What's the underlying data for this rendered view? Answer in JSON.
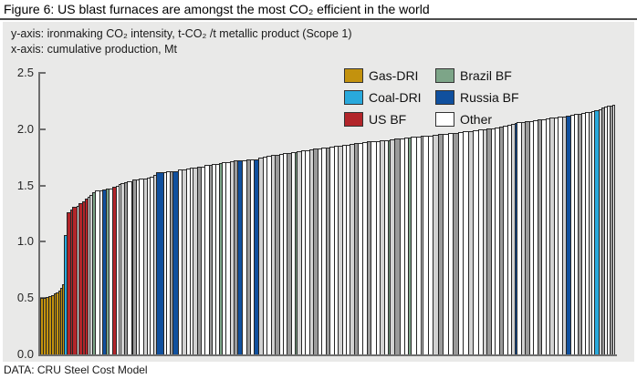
{
  "figure": {
    "title": "Figure 6: US blast furnaces are amongst the most CO₂ efficient in the world",
    "axis_note_y": "y-axis: ironmaking CO₂ intensity, t-CO₂ /t metallic product (Scope 1)",
    "axis_note_x": "x-axis: cumulative production, Mt",
    "source": "DATA: CRU Steel Cost Model"
  },
  "colors": {
    "panel_bg": "#E9E9E8",
    "axis": "#6e6e6e",
    "bar_border": "#262626",
    "title_rule": "#4d4d4d"
  },
  "chart_data": {
    "type": "bar",
    "subtype": "cost-curve",
    "title": "US blast furnaces are amongst the most CO₂ efficient in the world",
    "xlabel": "cumulative production, Mt",
    "ylabel": "ironmaking CO₂ intensity, t-CO₂ /t metallic product (Scope 1)",
    "ylim": [
      0,
      2.5
    ],
    "yticks": [
      "0.0",
      "0.5",
      "1.0",
      "1.5",
      "2.0",
      "2.5"
    ],
    "xticks": [],
    "grid": false,
    "legend_position": "top-right",
    "legend": [
      {
        "code": "gas",
        "label": "Gas-DRI",
        "color": "#C3920E"
      },
      {
        "code": "coal",
        "label": "Coal-DRI",
        "color": "#29A9DC"
      },
      {
        "code": "us",
        "label": "US BF",
        "color": "#B2252A"
      },
      {
        "code": "brazil",
        "label": "Brazil BF",
        "color": "#7DA588"
      },
      {
        "code": "russia",
        "label": "Russia BF",
        "color": "#10509E"
      },
      {
        "code": "other",
        "label": "Other",
        "color": "#FFFFFF"
      }
    ],
    "bars": [
      [
        "gas",
        0.5,
        3
      ],
      [
        "gas",
        0.505,
        3
      ],
      [
        "gas",
        0.51,
        3
      ],
      [
        "gas",
        0.52,
        3
      ],
      [
        "gas",
        0.53,
        3
      ],
      [
        "gas",
        0.54,
        2.5
      ],
      [
        "gas",
        0.55,
        2.5
      ],
      [
        "gas",
        0.57,
        2
      ],
      [
        "gas",
        0.59,
        2
      ],
      [
        "gas",
        0.62,
        2
      ],
      [
        "coal",
        1.06,
        3.5
      ],
      [
        "us",
        1.26,
        4
      ],
      [
        "us",
        1.29,
        2
      ],
      [
        "us",
        1.31,
        5
      ],
      [
        "other",
        1.32,
        2
      ],
      [
        "us",
        1.34,
        4
      ],
      [
        "us",
        1.36,
        2.5
      ],
      [
        "us",
        1.38,
        3
      ],
      [
        "other",
        1.4,
        2.5
      ],
      [
        "other",
        1.42,
        2.5
      ],
      [
        "brazil",
        1.44,
        3
      ],
      [
        "other",
        1.455,
        5
      ],
      [
        "other",
        1.46,
        3.5
      ],
      [
        "russia",
        1.465,
        4
      ],
      [
        "brazil",
        1.47,
        2.5
      ],
      [
        "other",
        1.475,
        4.5
      ],
      [
        "us",
        1.49,
        3.5
      ],
      [
        "other",
        1.5,
        3
      ],
      [
        "other",
        1.51,
        2
      ],
      [
        "other",
        1.52,
        4
      ],
      [
        "other",
        1.53,
        3
      ],
      [
        "other",
        1.535,
        5
      ],
      [
        "other",
        1.54,
        2
      ],
      [
        "other",
        1.55,
        4
      ],
      [
        "other",
        1.555,
        3
      ],
      [
        "other",
        1.56,
        5
      ],
      [
        "other",
        1.565,
        4
      ],
      [
        "other",
        1.57,
        3
      ],
      [
        "other",
        1.58,
        4
      ],
      [
        "other",
        1.59,
        3
      ],
      [
        "russia",
        1.62,
        8
      ],
      [
        "other",
        1.62,
        3
      ],
      [
        "other",
        1.625,
        4
      ],
      [
        "other",
        1.63,
        3
      ],
      [
        "russia",
        1.63,
        6
      ],
      [
        "other",
        1.64,
        4
      ],
      [
        "other",
        1.645,
        5
      ],
      [
        "other",
        1.65,
        4
      ],
      [
        "other",
        1.655,
        3
      ],
      [
        "other",
        1.66,
        5
      ],
      [
        "other",
        1.665,
        4
      ],
      [
        "other",
        1.67,
        4
      ],
      [
        "other",
        1.68,
        5
      ],
      [
        "other",
        1.685,
        3
      ],
      [
        "other",
        1.69,
        4
      ],
      [
        "other",
        1.695,
        4
      ],
      [
        "brazil",
        1.7,
        3
      ],
      [
        "other",
        1.705,
        4
      ],
      [
        "other",
        1.71,
        5
      ],
      [
        "other",
        1.715,
        4
      ],
      [
        "other",
        1.72,
        4
      ],
      [
        "russia",
        1.72,
        5
      ],
      [
        "other",
        1.725,
        5
      ],
      [
        "other",
        1.73,
        4
      ],
      [
        "other",
        1.735,
        4
      ],
      [
        "russia",
        1.735,
        5
      ],
      [
        "other",
        1.75,
        5
      ],
      [
        "other",
        1.755,
        4
      ],
      [
        "other",
        1.76,
        5
      ],
      [
        "other",
        1.77,
        4
      ],
      [
        "other",
        1.775,
        5
      ],
      [
        "other",
        1.78,
        4
      ],
      [
        "other",
        1.785,
        4
      ],
      [
        "other",
        1.79,
        5
      ],
      [
        "other",
        1.795,
        4
      ],
      [
        "brazil",
        1.8,
        2.5
      ],
      [
        "other",
        1.805,
        5
      ],
      [
        "other",
        1.81,
        4
      ],
      [
        "other",
        1.815,
        5
      ],
      [
        "other",
        1.82,
        4
      ],
      [
        "other",
        1.825,
        5
      ],
      [
        "other",
        1.83,
        4
      ],
      [
        "other",
        1.835,
        5
      ],
      [
        "other",
        1.84,
        4
      ],
      [
        "other",
        1.845,
        5
      ],
      [
        "other",
        1.85,
        4
      ],
      [
        "other",
        1.855,
        5
      ],
      [
        "other",
        1.86,
        4
      ],
      [
        "other",
        1.865,
        4
      ],
      [
        "other",
        1.87,
        5
      ],
      [
        "other",
        1.875,
        4
      ],
      [
        "other",
        1.88,
        5
      ],
      [
        "other",
        1.885,
        5
      ],
      [
        "other",
        1.89,
        4
      ],
      [
        "other",
        1.893,
        6
      ],
      [
        "other",
        1.896,
        4
      ],
      [
        "other",
        1.9,
        5
      ],
      [
        "other",
        1.903,
        4
      ],
      [
        "brazil",
        1.905,
        2.5
      ],
      [
        "other",
        1.91,
        5
      ],
      [
        "other",
        1.915,
        6
      ],
      [
        "other",
        1.92,
        5
      ],
      [
        "other",
        1.925,
        4
      ],
      [
        "brazil",
        1.928,
        2.5
      ],
      [
        "other",
        1.93,
        6
      ],
      [
        "other",
        1.935,
        5
      ],
      [
        "other",
        1.94,
        2
      ],
      [
        "other",
        1.94,
        6
      ],
      [
        "other",
        1.945,
        5
      ],
      [
        "other",
        1.95,
        6
      ],
      [
        "other",
        1.955,
        5
      ],
      [
        "other",
        1.96,
        6
      ],
      [
        "other",
        1.965,
        5
      ],
      [
        "other",
        1.97,
        6
      ],
      [
        "other",
        1.975,
        5
      ],
      [
        "other",
        1.98,
        6
      ],
      [
        "other",
        1.985,
        5
      ],
      [
        "other",
        1.99,
        6
      ],
      [
        "other",
        1.995,
        5
      ],
      [
        "other",
        2.0,
        4
      ],
      [
        "other",
        2.005,
        5
      ],
      [
        "other",
        2.01,
        4
      ],
      [
        "other",
        2.015,
        5
      ],
      [
        "other",
        2.02,
        4
      ],
      [
        "other",
        2.03,
        5
      ],
      [
        "other",
        2.04,
        4
      ],
      [
        "other",
        2.05,
        4
      ],
      [
        "russia",
        2.055,
        3
      ],
      [
        "other",
        2.06,
        5
      ],
      [
        "other",
        2.065,
        4
      ],
      [
        "other",
        2.07,
        5
      ],
      [
        "other",
        2.075,
        4
      ],
      [
        "other",
        2.08,
        5
      ],
      [
        "other",
        2.085,
        4
      ],
      [
        "other",
        2.09,
        5
      ],
      [
        "other",
        2.095,
        4
      ],
      [
        "other",
        2.1,
        5
      ],
      [
        "other",
        2.105,
        4
      ],
      [
        "other",
        2.11,
        5
      ],
      [
        "other",
        2.115,
        4
      ],
      [
        "russia",
        2.12,
        5
      ],
      [
        "other",
        2.13,
        4
      ],
      [
        "other",
        2.135,
        4
      ],
      [
        "other",
        2.14,
        4
      ],
      [
        "other",
        2.145,
        4
      ],
      [
        "other",
        2.15,
        4
      ],
      [
        "other",
        2.155,
        3
      ],
      [
        "other",
        2.16,
        3
      ],
      [
        "coal",
        2.17,
        4.5
      ],
      [
        "other",
        2.18,
        3
      ],
      [
        "other",
        2.19,
        3
      ],
      [
        "other",
        2.2,
        3
      ],
      [
        "other",
        2.205,
        3
      ],
      [
        "other",
        2.21,
        3
      ],
      [
        "other",
        2.22,
        3.5
      ]
    ]
  }
}
